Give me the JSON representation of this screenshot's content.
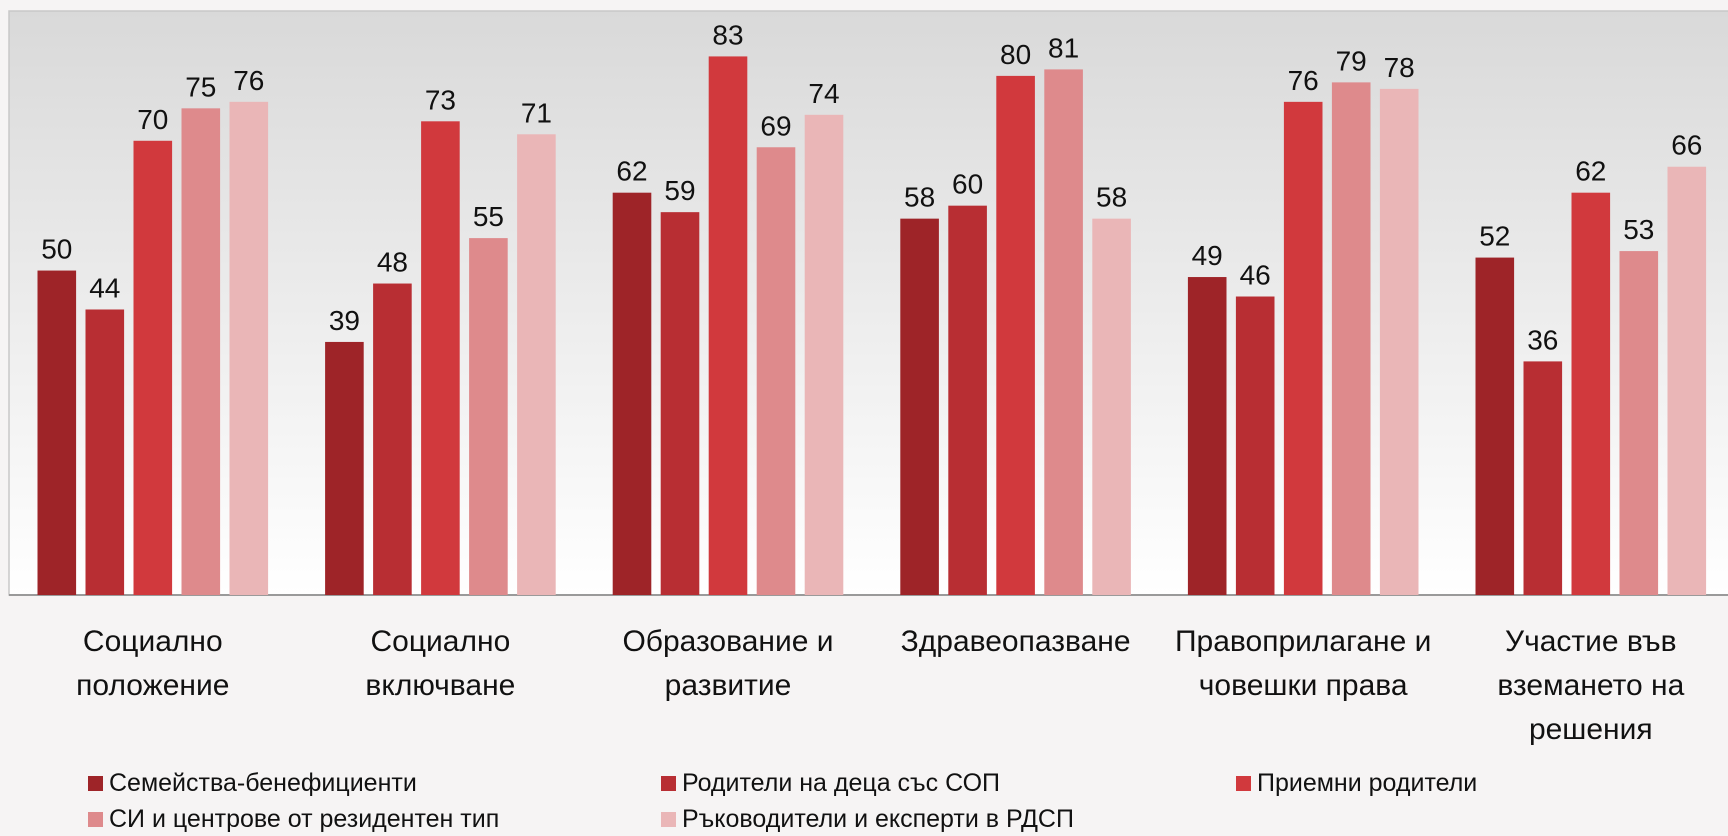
{
  "chart_data": {
    "type": "bar",
    "categories": [
      "Социално положение",
      "Социално включване",
      "Образование и развитие",
      "Здравеопазване",
      "Правоприлагане и човешки права",
      "Участие във вземането на решения"
    ],
    "series": [
      {
        "name": "Семейства-бенефициенти",
        "color": "#9e2428",
        "values": [
          50,
          39,
          62,
          58,
          49,
          52
        ]
      },
      {
        "name": "Родители на деца със СОП",
        "color": "#b82e33",
        "values": [
          44,
          48,
          59,
          60,
          46,
          36
        ]
      },
      {
        "name": "Приемни родители",
        "color": "#d1393d",
        "values": [
          70,
          73,
          83,
          80,
          76,
          62
        ]
      },
      {
        "name": "СИ и центрове от резидентен тип",
        "color": "#de8a8c",
        "values": [
          75,
          55,
          69,
          81,
          79,
          53
        ]
      },
      {
        "name": "Ръководители и експерти в РДСП",
        "color": "#eab6b7",
        "values": [
          76,
          71,
          74,
          58,
          78,
          66
        ]
      }
    ],
    "ylim": [
      0,
      90
    ]
  }
}
